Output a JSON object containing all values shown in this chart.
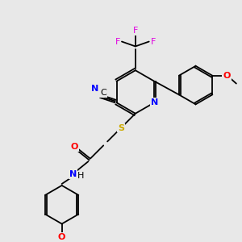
{
  "bg_color": "#e8e8e8",
  "atom_colors": {
    "N": "#0000ff",
    "O": "#ff0000",
    "S": "#ccaa00",
    "F": "#e000e0",
    "C": "#000000"
  },
  "figsize": [
    3.0,
    3.0
  ],
  "dpi": 100
}
